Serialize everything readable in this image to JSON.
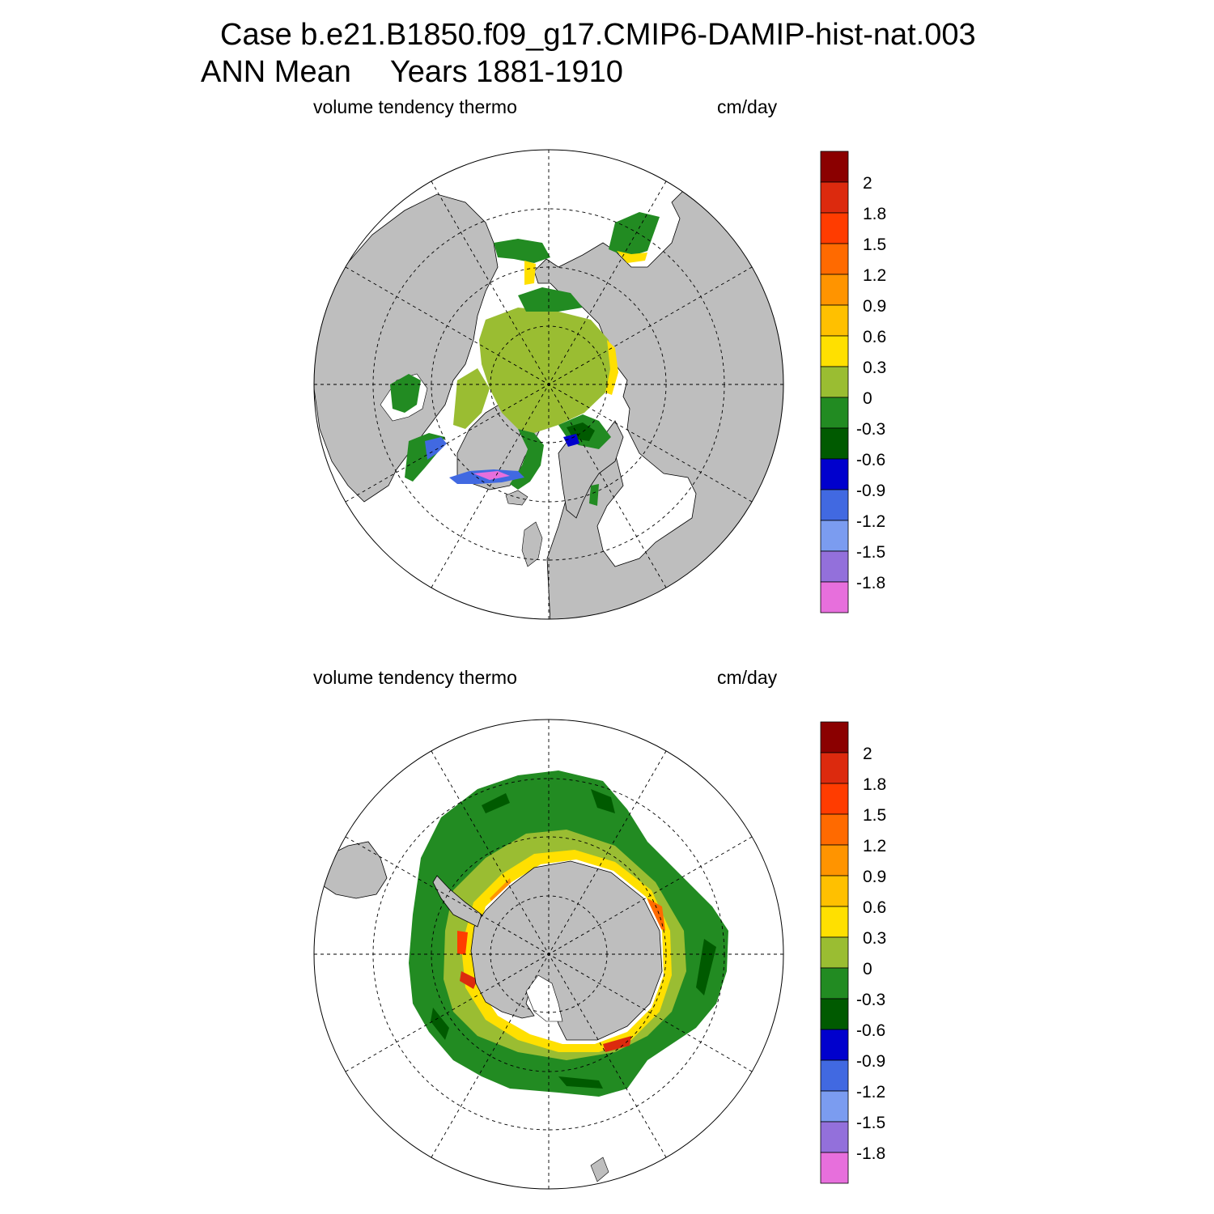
{
  "title": {
    "line1": "Case b.e21.B1850.f09_g17.CMIP6-DAMIP-hist-nat.003",
    "season": "ANN Mean",
    "years": "Years 1881-1910"
  },
  "colors": {
    "land": "#bebebe",
    "ocean_no_ice": "#ffffff",
    "grid_line": "#000000"
  },
  "colorbar": {
    "labels": [
      "2",
      "1.8",
      "1.5",
      "1.2",
      "0.9",
      "0.6",
      "0.3",
      "0",
      "-0.3",
      "-0.6",
      "-0.9",
      "-1.2",
      "-1.5",
      "-1.8"
    ],
    "colors_top_to_bottom": [
      "#8b0000",
      "#dc2a0e",
      "#ff3c00",
      "#ff6a00",
      "#ff9400",
      "#ffc000",
      "#ffe000",
      "#9abd32",
      "#228b22",
      "#005a00",
      "#0000cd",
      "#4169e1",
      "#7b9cf0",
      "#9370db",
      "#e76fdc"
    ]
  },
  "panels": [
    {
      "id": "north",
      "hemisphere": "Northern Hemisphere",
      "left_label": "volume tendency thermo",
      "right_label": "cm/day"
    },
    {
      "id": "south",
      "hemisphere": "Southern Hemisphere",
      "left_label": "volume tendency thermo",
      "right_label": "cm/day"
    }
  ]
}
